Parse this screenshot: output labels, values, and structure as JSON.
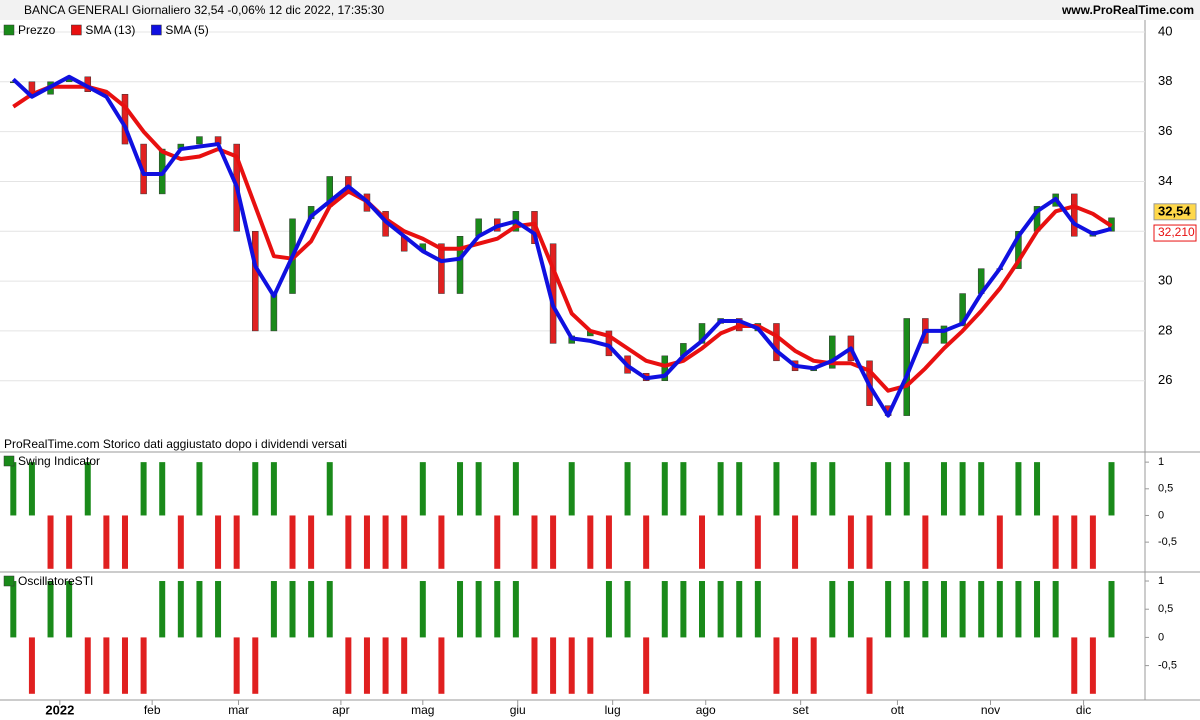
{
  "header": {
    "title": "BANCA GENERALI Giornaliero 32,54 -0,06% 12 dic 2022, 17:35:30",
    "site": "www.ProRealTime.com",
    "note": "ProRealTime.com Storico dati aggiustato dopo i dividendi versati"
  },
  "chart_data": [
    {
      "type": "line",
      "xlim": [
        -0.715,
        60.8
      ],
      "ylim": [
        23.14,
        40.48
      ],
      "yticks": [
        26,
        28,
        30,
        32,
        34,
        36,
        38,
        40
      ],
      "grid": true,
      "legend": "top-left",
      "series": [
        {
          "name": "Prezzo",
          "color": "#1a8a1a",
          "down_color": "#e02020",
          "style": "candles",
          "values": [
            38.0,
            37.5,
            38.0,
            38.2,
            37.6,
            37.5,
            35.5,
            33.5,
            35.3,
            35.5,
            35.8,
            35.5,
            32.0,
            28.0,
            29.5,
            32.5,
            33.0,
            34.2,
            33.5,
            32.8,
            31.8,
            31.2,
            31.5,
            29.5,
            31.8,
            32.5,
            32.0,
            32.8,
            31.5,
            27.5,
            27.8,
            28.0,
            27.0,
            26.3,
            26.0,
            27.0,
            27.5,
            28.3,
            28.5,
            28.0,
            28.3,
            26.8,
            26.4,
            26.5,
            27.8,
            26.8,
            25.0,
            24.6,
            28.5,
            27.5,
            28.2,
            29.5,
            30.5,
            30.5,
            32.0,
            33.0,
            33.5,
            31.8,
            32.0,
            32.54
          ],
          "last_label": "32,54"
        },
        {
          "name": "SMA (13)",
          "color": "#e81010",
          "values": [
            37.0,
            37.5,
            37.8,
            37.8,
            37.8,
            37.6,
            37.0,
            36.0,
            35.2,
            34.9,
            35.0,
            35.3,
            35.0,
            33.0,
            31.0,
            30.9,
            31.6,
            33.0,
            33.6,
            33.2,
            32.5,
            32.0,
            31.7,
            31.3,
            31.3,
            31.5,
            31.7,
            32.2,
            32.3,
            30.5,
            28.7,
            28.0,
            27.8,
            27.3,
            26.8,
            26.6,
            26.8,
            27.3,
            27.9,
            28.2,
            28.2,
            27.8,
            27.2,
            26.8,
            26.7,
            26.7,
            26.4,
            25.6,
            25.8,
            26.5,
            27.3,
            28.0,
            28.8,
            29.7,
            30.8,
            32.0,
            32.8,
            33.0,
            32.7,
            32.21
          ],
          "last_label": "32,210"
        },
        {
          "name": "SMA (5)",
          "color": "#1010e0",
          "values": [
            38.1,
            37.4,
            37.8,
            38.2,
            37.8,
            37.4,
            36.2,
            34.3,
            34.3,
            35.3,
            35.4,
            35.5,
            33.8,
            30.6,
            29.4,
            31.0,
            32.6,
            33.2,
            33.8,
            33.2,
            32.4,
            31.8,
            31.2,
            30.8,
            30.9,
            31.8,
            32.2,
            32.4,
            31.9,
            29.0,
            27.7,
            27.6,
            27.4,
            26.6,
            26.1,
            26.2,
            27.0,
            27.6,
            28.4,
            28.4,
            28.1,
            27.2,
            26.6,
            26.5,
            26.8,
            27.3,
            25.8,
            24.6,
            26.2,
            28.0,
            28.0,
            28.3,
            29.5,
            30.5,
            31.8,
            32.8,
            33.3,
            32.3,
            31.9,
            32.1
          ]
        }
      ]
    },
    {
      "type": "bar",
      "title": "Swing Indicator",
      "xlim": [
        -0.715,
        60.8
      ],
      "ylim": [
        -1.06,
        1.19
      ],
      "yticks": [
        1,
        {
          "value": 0.5,
          "label": "0,5"
        },
        0,
        {
          "value": -0.5,
          "label": "-0,5"
        }
      ],
      "up_color": "#1a8a1a",
      "down_color": "#e02020",
      "values": [
        1,
        1,
        -1,
        -1,
        1,
        -1,
        -1,
        1,
        1,
        -1,
        1,
        -1,
        -1,
        1,
        1,
        -1,
        -1,
        1,
        -1,
        -1,
        -1,
        -1,
        1,
        -1,
        1,
        1,
        -1,
        1,
        -1,
        -1,
        1,
        -1,
        -1,
        1,
        -1,
        1,
        1,
        -1,
        1,
        1,
        -1,
        1,
        -1,
        1,
        1,
        -1,
        -1,
        1,
        1,
        -1,
        1,
        1,
        1,
        -1,
        1,
        1,
        -1,
        -1,
        -1,
        1
      ]
    },
    {
      "type": "bar",
      "title": "OscillatoreSTI",
      "xlim": [
        -0.715,
        60.8
      ],
      "ylim": [
        -1.11,
        1.16
      ],
      "yticks": [
        1,
        {
          "value": 0.5,
          "label": "0,5"
        },
        0,
        {
          "value": -0.5,
          "label": "-0,5"
        }
      ],
      "up_color": "#1a8a1a",
      "down_color": "#e02020",
      "values": [
        1,
        -1,
        1,
        1,
        -1,
        -1,
        -1,
        -1,
        1,
        1,
        1,
        1,
        -1,
        -1,
        1,
        1,
        1,
        1,
        -1,
        -1,
        -1,
        -1,
        1,
        -1,
        1,
        1,
        1,
        1,
        -1,
        -1,
        -1,
        -1,
        1,
        1,
        -1,
        1,
        1,
        1,
        1,
        1,
        1,
        -1,
        -1,
        -1,
        1,
        1,
        -1,
        1,
        1,
        1,
        1,
        1,
        1,
        1,
        1,
        1,
        1,
        -1,
        -1,
        1
      ],
      "xticks": [
        {
          "value": 2.5,
          "label": "2022"
        },
        {
          "value": 7.46,
          "label": "feb"
        },
        {
          "value": 12.1,
          "label": "mar"
        },
        {
          "value": 17.6,
          "label": "apr"
        },
        {
          "value": 22.0,
          "label": "mag"
        },
        {
          "value": 27.1,
          "label": "giu"
        },
        {
          "value": 32.2,
          "label": "lug"
        },
        {
          "value": 37.2,
          "label": "ago"
        },
        {
          "value": 42.3,
          "label": "set"
        },
        {
          "value": 47.5,
          "label": "ott"
        },
        {
          "value": 52.5,
          "label": "nov"
        },
        {
          "value": 57.5,
          "label": "dic"
        }
      ]
    }
  ]
}
